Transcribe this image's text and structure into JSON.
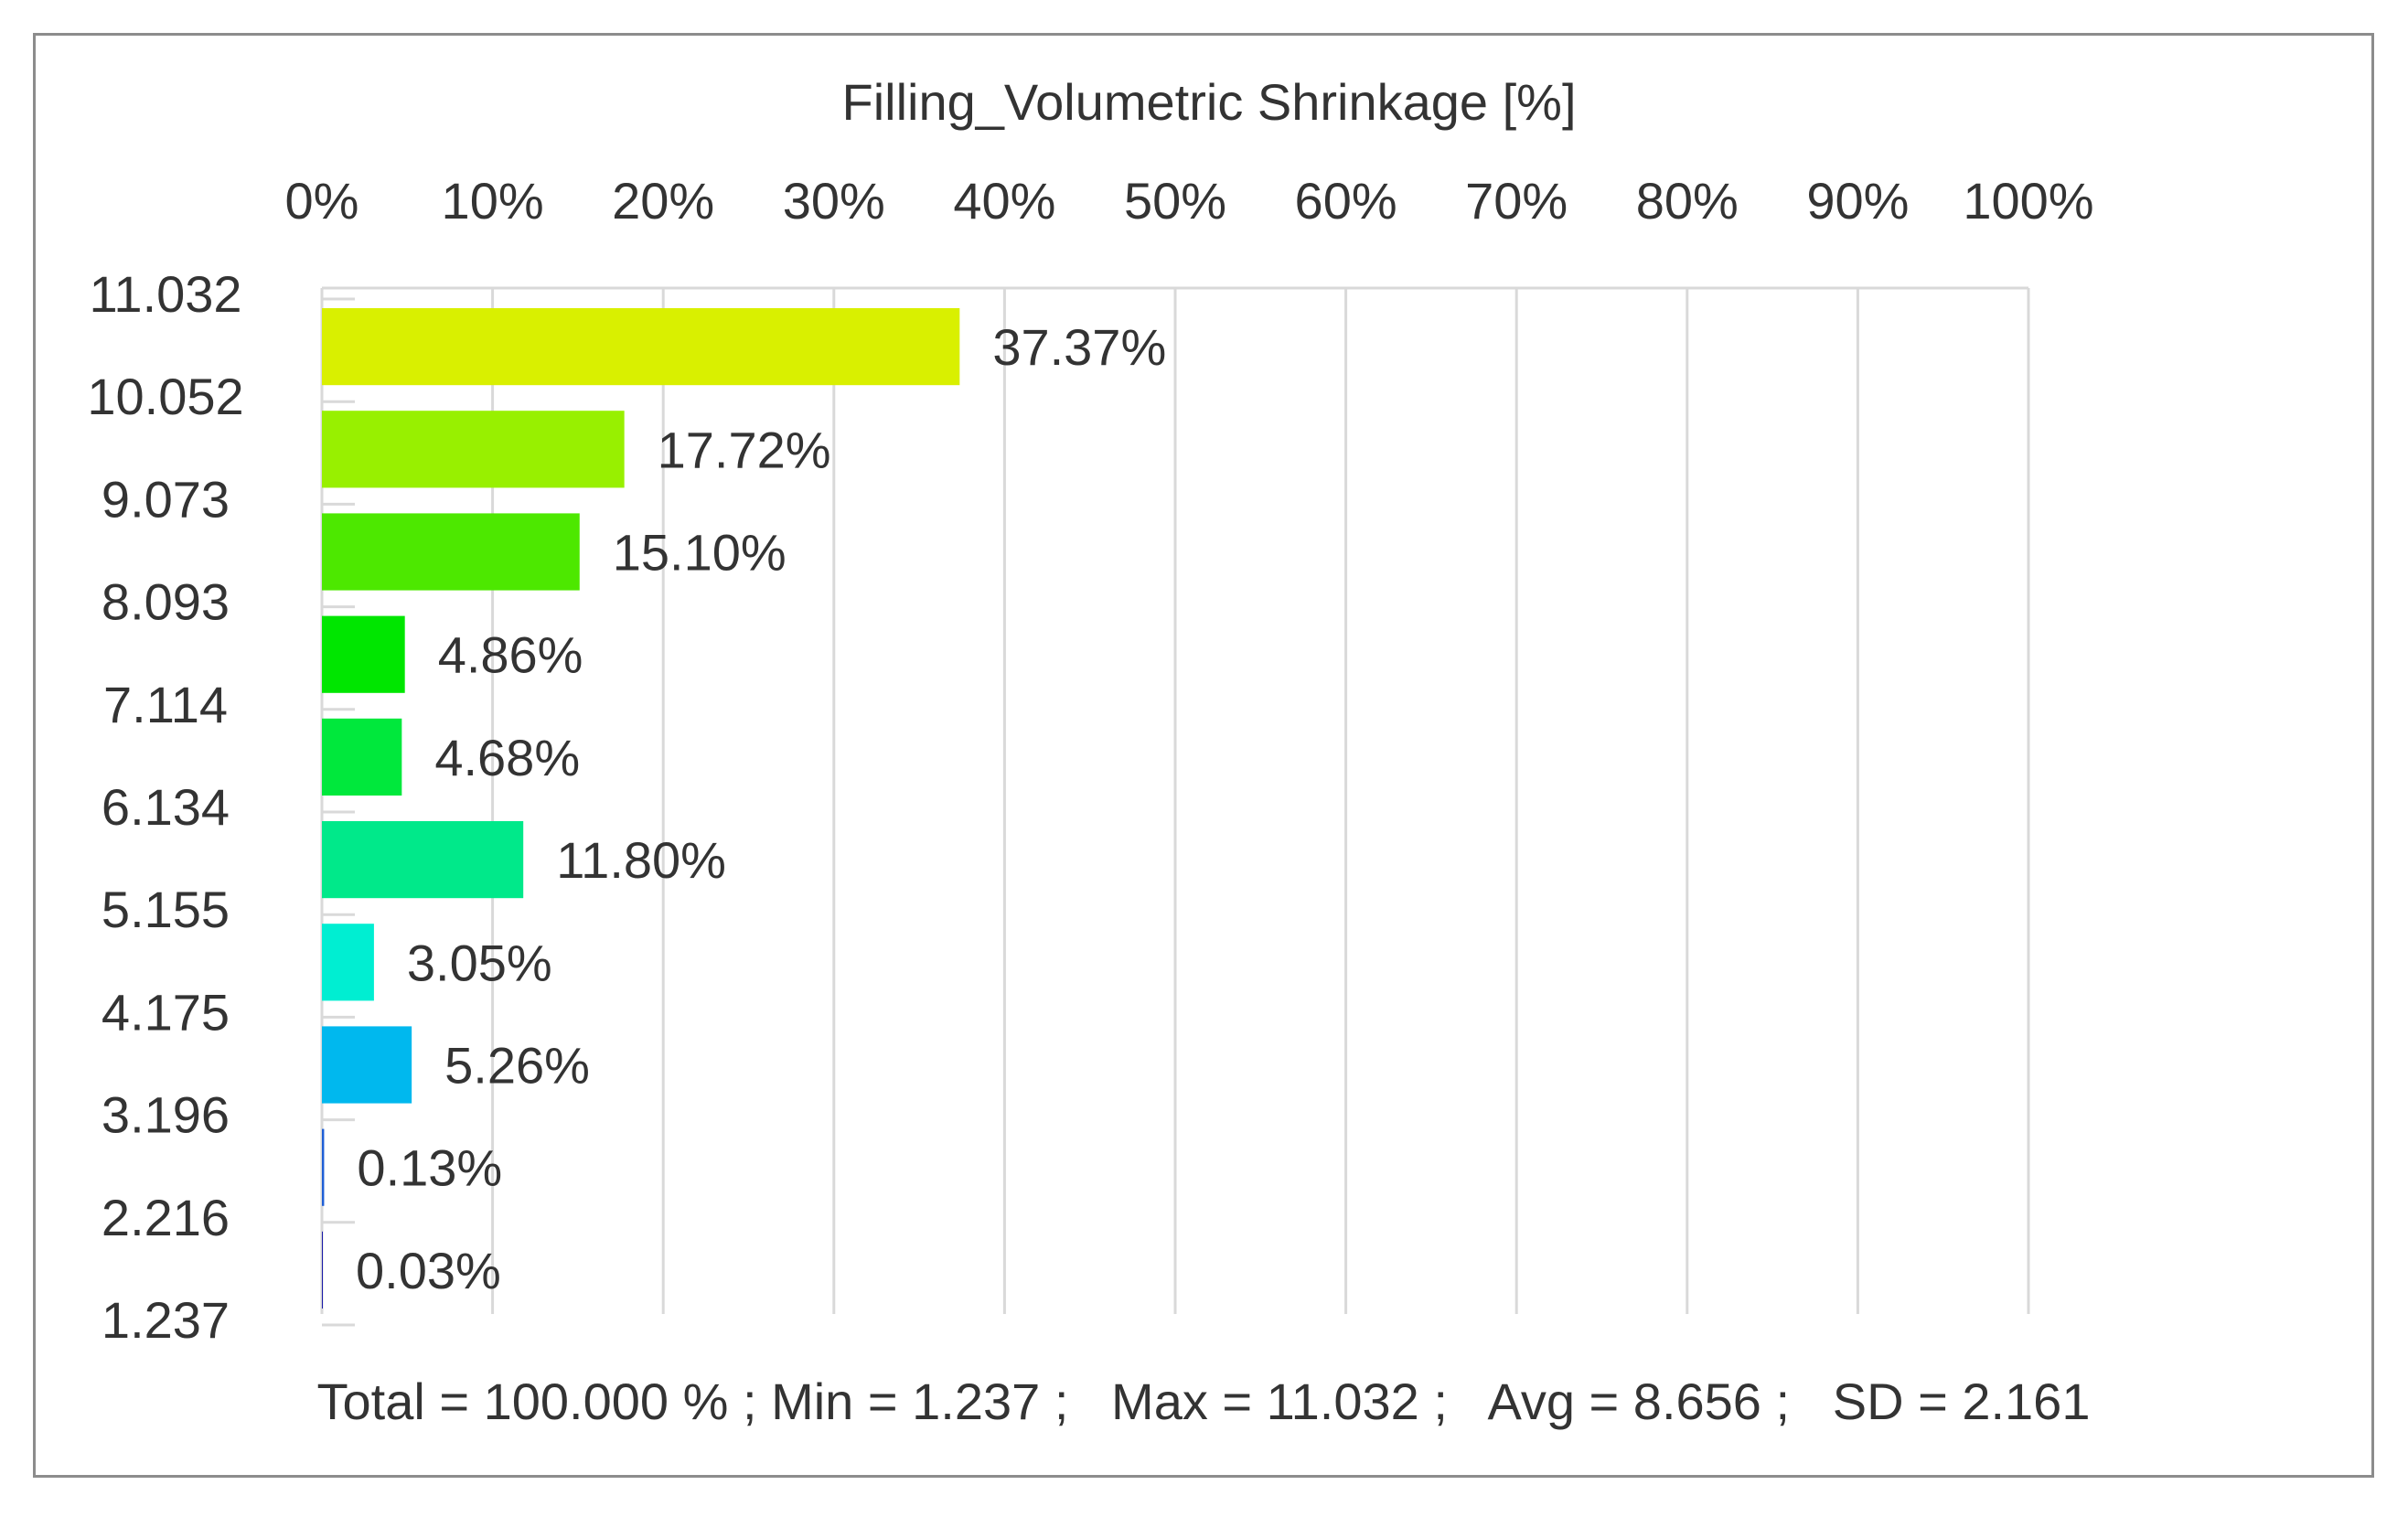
{
  "chart_data": {
    "type": "bar",
    "orientation": "horizontal",
    "title": "Filling_Volumetric Shrinkage [%]",
    "x_tick_labels": [
      "0%",
      "10%",
      "20%",
      "30%",
      "40%",
      "50%",
      "60%",
      "70%",
      "80%",
      "90%",
      "100%"
    ],
    "xlim": [
      0,
      100
    ],
    "x_axis_position": "top",
    "grid": true,
    "category_boundaries": [
      "11.032",
      "10.052",
      "9.073",
      "8.093",
      "7.114",
      "6.134",
      "5.155",
      "4.175",
      "3.196",
      "2.216",
      "1.237"
    ],
    "bins": [
      {
        "range": [
          "11.032",
          "10.052"
        ],
        "value": 37.37,
        "label": "37.37%",
        "color": "#d9f000"
      },
      {
        "range": [
          "10.052",
          "9.073"
        ],
        "value": 17.72,
        "label": "17.72%",
        "color": "#98f000"
      },
      {
        "range": [
          "9.073",
          "8.093"
        ],
        "value": 15.1,
        "label": "15.10%",
        "color": "#4de800"
      },
      {
        "range": [
          "8.093",
          "7.114"
        ],
        "value": 4.86,
        "label": "4.86%",
        "color": "#00e600"
      },
      {
        "range": [
          "7.114",
          "6.134"
        ],
        "value": 4.68,
        "label": "4.68%",
        "color": "#00e83c"
      },
      {
        "range": [
          "6.134",
          "5.155"
        ],
        "value": 11.8,
        "label": "11.80%",
        "color": "#00e98a"
      },
      {
        "range": [
          "5.155",
          "4.175"
        ],
        "value": 3.05,
        "label": "3.05%",
        "color": "#00eed2"
      },
      {
        "range": [
          "4.175",
          "3.196"
        ],
        "value": 5.26,
        "label": "5.26%",
        "color": "#00b8ee"
      },
      {
        "range": [
          "3.196",
          "2.216"
        ],
        "value": 0.13,
        "label": "0.13%",
        "color": "#1f5fd6"
      },
      {
        "range": [
          "2.216",
          "1.237"
        ],
        "value": 0.03,
        "label": "0.03%",
        "color": "#1a1aa8"
      }
    ],
    "stats_text": "Total = 100.000 % ; Min = 1.237 ;   Max = 11.032 ;   Avg = 8.656 ;   SD = 2.161"
  }
}
